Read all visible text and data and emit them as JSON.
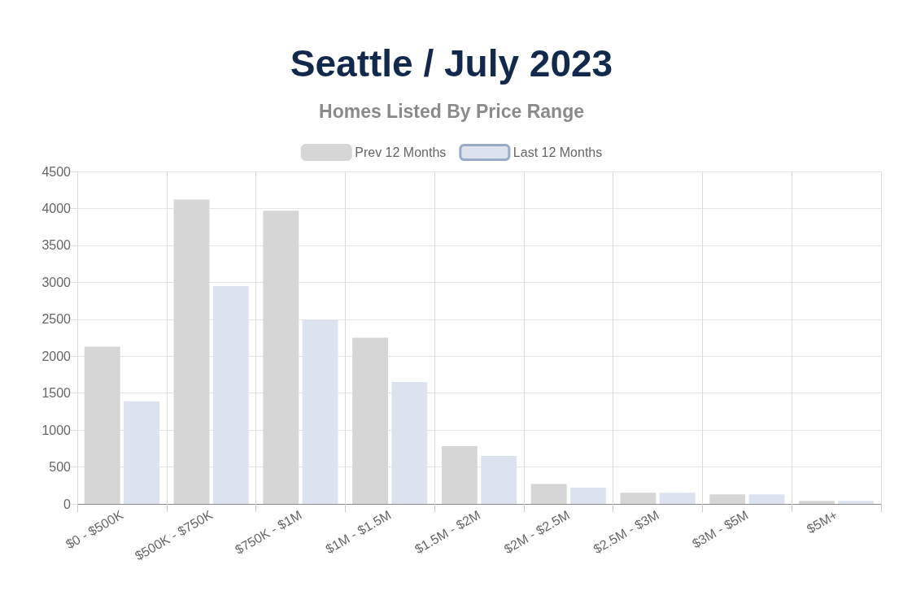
{
  "chart_data": {
    "type": "bar",
    "title": "Seattle / July 2023",
    "subtitle": "Homes Listed By Price Range",
    "categories": [
      "$0 - $500K",
      "$500K - $750K",
      "$750K - $1M",
      "$1M - $1.5M",
      "$1.5M - $2M",
      "$2M - $2.5M",
      "$2.5M - $3M",
      "$3M - $5M",
      "$5M+"
    ],
    "series": [
      {
        "name": "Prev 12 Months",
        "color": "#d6d6d6",
        "values": [
          2130,
          4120,
          3970,
          2250,
          780,
          270,
          150,
          130,
          40
        ]
      },
      {
        "name": "Last 12 Months",
        "color": "#dde3ee",
        "values": [
          1390,
          2950,
          2490,
          1650,
          650,
          220,
          150,
          130,
          40
        ]
      }
    ],
    "ylim": [
      0,
      4500
    ],
    "yticks": [
      0,
      500,
      1000,
      1500,
      2000,
      2500,
      3000,
      3500,
      4000,
      4500
    ],
    "grid": true,
    "legend": "top"
  }
}
